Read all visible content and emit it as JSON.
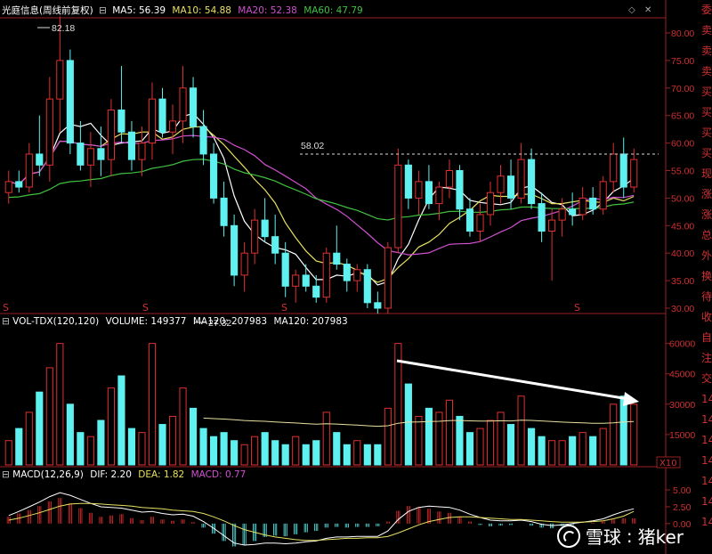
{
  "main": {
    "name": "光庭信息(周线前复权)",
    "ma5": "MA5: 56.39",
    "ma10": "MA10: 54.88",
    "ma20": "MA20: 52.38",
    "ma60": "MA60: 47.79",
    "y_ticks": [
      "80.00",
      "75.00",
      "70.00",
      "65.00",
      "60.00",
      "55.00",
      "50.00",
      "45.00",
      "40.00",
      "35.00",
      "30.00"
    ],
    "high_label": "82.18",
    "low_label": "27.32",
    "ref_label": "58.02",
    "s_markers": [
      "S",
      "S",
      "S",
      "S"
    ]
  },
  "volume": {
    "title": "VOL-TDX(120,120)",
    "volume": "VOLUME: 149377",
    "ma120a": "MA120: 207983",
    "ma120b": "MA120: 207983",
    "y_ticks": [
      "60000",
      "45000",
      "30000",
      "15000"
    ],
    "unit": "X10"
  },
  "macd": {
    "title": "MACD(12,26,9)",
    "dif": "DIF: 2.20",
    "dea": "DEA: 1.82",
    "macd": "MACD: 0.77",
    "y_ticks": [
      "5.00",
      "2.50",
      "0.00"
    ]
  },
  "right_panel": [
    "委",
    "卖",
    "卖",
    "卖",
    "买",
    "买",
    "买",
    "买",
    "现",
    "涨",
    "涨",
    "总",
    "外",
    "换",
    "待",
    "收",
    "自",
    "注",
    "交",
    "14",
    "14",
    "14",
    "14",
    "14",
    "14",
    "14"
  ],
  "watermark": {
    "brand": "雪球",
    "user": "猪ker"
  },
  "colors": {
    "up": "#e03030",
    "down": "#5ff0f0",
    "ma5": "#ffffff",
    "ma10": "#e8e060",
    "ma20": "#d050d0",
    "ma60": "#40c040",
    "bg": "#000000"
  },
  "chart_data": {
    "type": "candlestick",
    "price_range": [
      27,
      83
    ],
    "candles": [
      [
        51,
        55,
        49,
        53
      ],
      [
        53,
        55,
        51,
        52
      ],
      [
        52,
        60,
        51,
        58
      ],
      [
        58,
        65,
        54,
        56
      ],
      [
        56,
        72,
        53,
        68
      ],
      [
        68,
        83,
        62,
        75
      ],
      [
        75,
        77,
        58,
        60
      ],
      [
        60,
        64,
        55,
        56
      ],
      [
        56,
        62,
        52,
        59
      ],
      [
        59,
        63,
        54,
        57
      ],
      [
        57,
        68,
        54,
        66
      ],
      [
        66,
        74,
        60,
        62
      ],
      [
        62,
        64,
        55,
        57
      ],
      [
        57,
        63,
        54,
        60
      ],
      [
        60,
        71,
        57,
        68
      ],
      [
        68,
        70,
        61,
        62
      ],
      [
        62,
        67,
        58,
        64
      ],
      [
        64,
        74,
        60,
        70
      ],
      [
        70,
        72,
        61,
        63
      ],
      [
        63,
        66,
        56,
        58
      ],
      [
        58,
        60,
        49,
        50
      ],
      [
        50,
        53,
        43,
        45
      ],
      [
        45,
        47,
        34,
        36
      ],
      [
        36,
        42,
        33,
        40
      ],
      [
        40,
        48,
        38,
        46
      ],
      [
        46,
        50,
        42,
        43
      ],
      [
        43,
        47,
        38,
        40
      ],
      [
        40,
        42,
        32,
        34
      ],
      [
        34,
        37,
        31,
        36
      ],
      [
        36,
        38,
        33,
        34
      ],
      [
        34,
        36,
        31,
        32
      ],
      [
        32,
        41,
        31,
        40
      ],
      [
        40,
        45,
        37,
        38
      ],
      [
        38,
        39,
        33,
        35
      ],
      [
        35,
        38,
        33,
        37
      ],
      [
        37,
        38,
        30,
        31
      ],
      [
        31,
        33,
        29,
        30
      ],
      [
        30,
        42,
        29,
        41
      ],
      [
        41,
        59,
        40,
        56
      ],
      [
        56,
        57,
        48,
        50
      ],
      [
        50,
        55,
        47,
        53
      ],
      [
        53,
        56,
        48,
        49
      ],
      [
        49,
        53,
        46,
        52
      ],
      [
        52,
        57,
        50,
        55
      ],
      [
        55,
        56,
        46,
        48
      ],
      [
        48,
        50,
        43,
        44
      ],
      [
        44,
        49,
        42,
        47
      ],
      [
        47,
        53,
        45,
        51
      ],
      [
        51,
        56,
        49,
        54
      ],
      [
        54,
        57,
        48,
        50
      ],
      [
        50,
        60,
        49,
        57
      ],
      [
        57,
        59,
        48,
        49
      ],
      [
        49,
        51,
        42,
        44
      ],
      [
        44,
        48,
        35,
        46
      ],
      [
        46,
        50,
        43,
        48
      ],
      [
        48,
        51,
        45,
        47
      ],
      [
        47,
        52,
        46,
        50
      ],
      [
        50,
        52,
        47,
        48
      ],
      [
        48,
        54,
        47,
        53
      ],
      [
        53,
        60,
        51,
        58
      ],
      [
        58,
        61,
        50,
        52
      ],
      [
        52,
        59,
        51,
        57
      ]
    ],
    "vol_range": [
      0,
      66000
    ],
    "volumes": [
      12000,
      18000,
      26000,
      36000,
      48000,
      60000,
      30000,
      16000,
      14000,
      22000,
      38000,
      44000,
      18000,
      16000,
      60000,
      20000,
      24000,
      38000,
      28000,
      18000,
      14000,
      16000,
      12000,
      10000,
      14000,
      16000,
      12000,
      10000,
      14000,
      10000,
      12000,
      26000,
      16000,
      10000,
      12000,
      10000,
      10000,
      28000,
      60000,
      40000,
      24000,
      28000,
      26000,
      32000,
      24000,
      16000,
      18000,
      22000,
      26000,
      20000,
      34000,
      18000,
      14000,
      12000,
      12000,
      14000,
      16000,
      14000,
      18000,
      30000,
      34000,
      30000
    ],
    "macd_range": [
      -4,
      7
    ],
    "macd_hist": [
      1.0,
      1.5,
      2.0,
      2.6,
      3.3,
      3.8,
      3.0,
      2.3,
      1.6,
      1.0,
      1.2,
      1.4,
      0.8,
      0.5,
      1.0,
      0.6,
      0.4,
      0.6,
      0.2,
      -0.6,
      -1.5,
      -2.6,
      -3.4,
      -3.2,
      -2.6,
      -2.0,
      -1.8,
      -1.9,
      -1.6,
      -1.3,
      -1.1,
      -0.6,
      -0.5,
      -0.6,
      -0.5,
      -0.5,
      -0.4,
      0.3,
      1.9,
      2.6,
      2.4,
      2.2,
      1.8,
      1.6,
      1.0,
      0.3,
      -0.2,
      -0.4,
      -0.3,
      -0.2,
      0.0,
      -0.3,
      -0.6,
      -0.7,
      -0.4,
      -0.2,
      0.0,
      0.1,
      0.3,
      0.6,
      0.8,
      0.77
    ],
    "macd_dif": [
      1.2,
      1.8,
      2.5,
      3.2,
      4.0,
      4.6,
      4.2,
      3.6,
      3.0,
      2.5,
      2.4,
      2.3,
      2.0,
      1.7,
      1.8,
      1.5,
      1.3,
      1.4,
      1.1,
      0.3,
      -0.7,
      -1.8,
      -2.9,
      -3.2,
      -3.1,
      -2.9,
      -2.9,
      -3.0,
      -2.9,
      -2.7,
      -2.6,
      -2.2,
      -2.0,
      -2.0,
      -1.9,
      -1.9,
      -1.9,
      -1.1,
      0.6,
      1.8,
      2.4,
      2.6,
      2.5,
      2.4,
      2.0,
      1.4,
      0.9,
      0.5,
      0.4,
      0.4,
      0.5,
      0.3,
      -0.1,
      -0.3,
      -0.2,
      0.0,
      0.2,
      0.4,
      0.7,
      1.3,
      1.8,
      2.2
    ],
    "macd_dea": [
      0.5,
      0.8,
      1.2,
      1.6,
      2.1,
      2.6,
      2.9,
      3.0,
      3.0,
      2.9,
      2.8,
      2.7,
      2.6,
      2.4,
      2.3,
      2.2,
      2.0,
      1.9,
      1.8,
      1.5,
      1.0,
      0.4,
      -0.3,
      -0.9,
      -1.3,
      -1.7,
      -2.0,
      -2.2,
      -2.4,
      -2.5,
      -2.5,
      -2.4,
      -2.3,
      -2.2,
      -2.2,
      -2.1,
      -2.1,
      -1.9,
      -1.4,
      -0.8,
      -0.2,
      0.3,
      0.6,
      0.9,
      1.0,
      1.0,
      0.9,
      0.8,
      0.7,
      0.6,
      0.6,
      0.5,
      0.4,
      0.3,
      0.2,
      0.2,
      0.2,
      0.3,
      0.4,
      0.7,
      1.1,
      1.82
    ]
  }
}
